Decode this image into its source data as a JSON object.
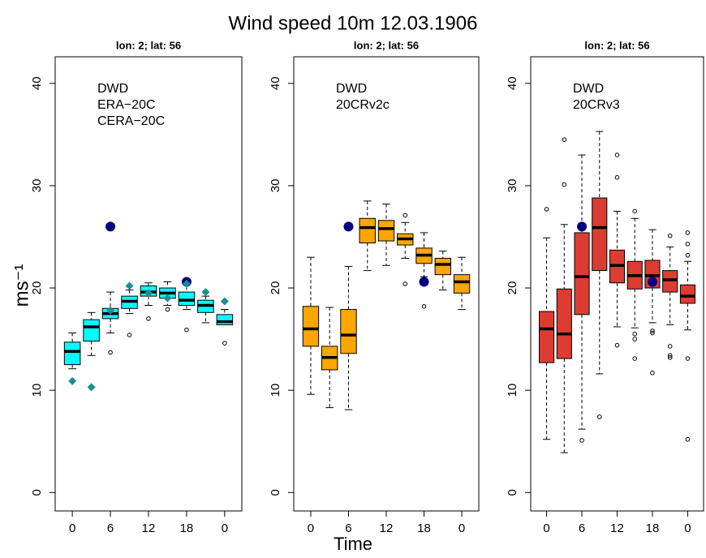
{
  "title": "Wind speed 10m 12.03.1906",
  "x_label": "Time",
  "y_label": "ms⁻¹",
  "chart_data": [
    {
      "type": "boxplot",
      "title": "lon: 2; lat: 56",
      "xlim": [
        -2.7,
        26.7
      ],
      "ylim": [
        -1.8,
        42.6
      ],
      "xticks": [
        0,
        6,
        12,
        18,
        {
          "value": 24,
          "label": "0"
        }
      ],
      "yticks": [
        0,
        10,
        20,
        30,
        40
      ],
      "x": [
        0,
        3,
        6,
        9,
        12,
        15,
        18,
        21,
        24
      ],
      "boxes": {
        "name": "CERA−20C",
        "color": "#00ffff",
        "low": [
          12.1,
          13.4,
          15.6,
          17.5,
          18.3,
          18.3,
          17.9,
          16.6,
          16.4
        ],
        "q1": [
          12.5,
          14.8,
          17.0,
          18.0,
          19.2,
          19.0,
          18.3,
          17.6,
          16.4
        ],
        "median": [
          13.8,
          16.2,
          17.5,
          18.7,
          19.6,
          19.5,
          18.8,
          18.3,
          16.7
        ],
        "q3": [
          14.7,
          16.9,
          18.0,
          19.2,
          20.2,
          20.0,
          19.6,
          18.8,
          17.4
        ],
        "high": [
          15.6,
          17.6,
          19.6,
          19.8,
          20.5,
          20.6,
          20.7,
          19.2,
          17.9
        ],
        "outliers": [
          [],
          [],
          [
            13.7
          ],
          [
            15.4
          ],
          [
            17.0
          ],
          [
            17.9
          ],
          [
            15.9
          ],
          [],
          [
            14.6
          ]
        ]
      },
      "points": [
        {
          "name": "DWD",
          "color": "#000080",
          "marker": "circle",
          "x": [
            6,
            18
          ],
          "values": [
            26.0,
            20.6
          ]
        },
        {
          "name": "ERA−20C",
          "color": "#1a9090",
          "marker": "diamond",
          "x": [
            0,
            3,
            6,
            9,
            12,
            15,
            18,
            21,
            24
          ],
          "values": [
            10.9,
            10.3,
            17.8,
            20.2,
            19.5,
            19.0,
            20.4,
            19.6,
            18.7
          ]
        }
      ]
    },
    {
      "type": "boxplot",
      "title": "lon: 2; lat: 56",
      "xlim": [
        -2.7,
        26.7
      ],
      "ylim": [
        -1.8,
        42.6
      ],
      "xticks": [
        0,
        6,
        12,
        18,
        {
          "value": 24,
          "label": "0"
        }
      ],
      "yticks": [
        0,
        10,
        20,
        30,
        40
      ],
      "x": [
        0,
        3,
        6,
        9,
        12,
        15,
        18,
        21,
        24
      ],
      "boxes": {
        "name": "20CRv2c",
        "color": "#ffa500",
        "low": [
          9.6,
          8.3,
          8.1,
          21.7,
          22.2,
          22.9,
          21.1,
          19.8,
          17.9
        ],
        "q1": [
          14.3,
          12.0,
          13.6,
          24.4,
          24.6,
          24.2,
          22.4,
          21.3,
          19.5
        ],
        "median": [
          16.0,
          13.2,
          15.4,
          25.9,
          25.8,
          24.8,
          23.2,
          22.3,
          20.6
        ],
        "q3": [
          18.2,
          14.3,
          17.9,
          26.8,
          26.6,
          25.3,
          23.9,
          22.9,
          21.3
        ],
        "high": [
          23.0,
          18.1,
          22.1,
          28.5,
          28.2,
          26.4,
          25.4,
          23.6,
          23.0
        ],
        "outliers": [
          [],
          [],
          [],
          [],
          [],
          [
            27.1,
            20.4
          ],
          [
            18.2
          ],
          [],
          []
        ]
      },
      "points": [
        {
          "name": "DWD",
          "color": "#000080",
          "marker": "circle",
          "x": [
            6,
            18
          ],
          "values": [
            26.0,
            20.6
          ]
        }
      ]
    },
    {
      "type": "boxplot",
      "title": "lon: 2; lat: 56",
      "xlim": [
        -2.7,
        26.7
      ],
      "ylim": [
        -1.8,
        42.6
      ],
      "xticks": [
        0,
        6,
        12,
        18,
        {
          "value": 24,
          "label": "0"
        }
      ],
      "yticks": [
        0,
        10,
        20,
        30,
        40
      ],
      "x": [
        0,
        3,
        6,
        9,
        12,
        15,
        18,
        21,
        24
      ],
      "boxes": {
        "name": "20CRv3",
        "color": "#dc3c32",
        "low": [
          5.2,
          3.9,
          6.2,
          11.6,
          16.2,
          16.1,
          16.6,
          16.4,
          15.9
        ],
        "q1": [
          12.7,
          13.1,
          17.4,
          21.7,
          20.5,
          19.9,
          20.0,
          19.6,
          18.5
        ],
        "median": [
          16.0,
          15.5,
          21.1,
          25.9,
          22.2,
          21.2,
          21.2,
          20.8,
          19.2
        ],
        "q3": [
          17.7,
          19.9,
          25.4,
          28.8,
          23.7,
          22.6,
          22.7,
          21.7,
          20.3
        ],
        "high": [
          24.9,
          26.2,
          33.0,
          35.3,
          27.5,
          26.8,
          25.7,
          24.0,
          22.6
        ],
        "outliers": [
          [
            27.7
          ],
          [
            34.5,
            30.1
          ],
          [
            5.1
          ],
          [
            7.4
          ],
          [
            33.0,
            30.8,
            14.4
          ],
          [
            27.5,
            15.5,
            15.0,
            13.1
          ],
          [
            15.8,
            15.6,
            11.7
          ],
          [
            25.1,
            14.3,
            13.4,
            13.2
          ],
          [
            25.4,
            24.3,
            23.2,
            13.1,
            5.2
          ]
        ]
      },
      "points": [
        {
          "name": "DWD",
          "color": "#000080",
          "marker": "circle",
          "x": [
            6,
            18
          ],
          "values": [
            26.0,
            20.6
          ]
        }
      ]
    }
  ]
}
